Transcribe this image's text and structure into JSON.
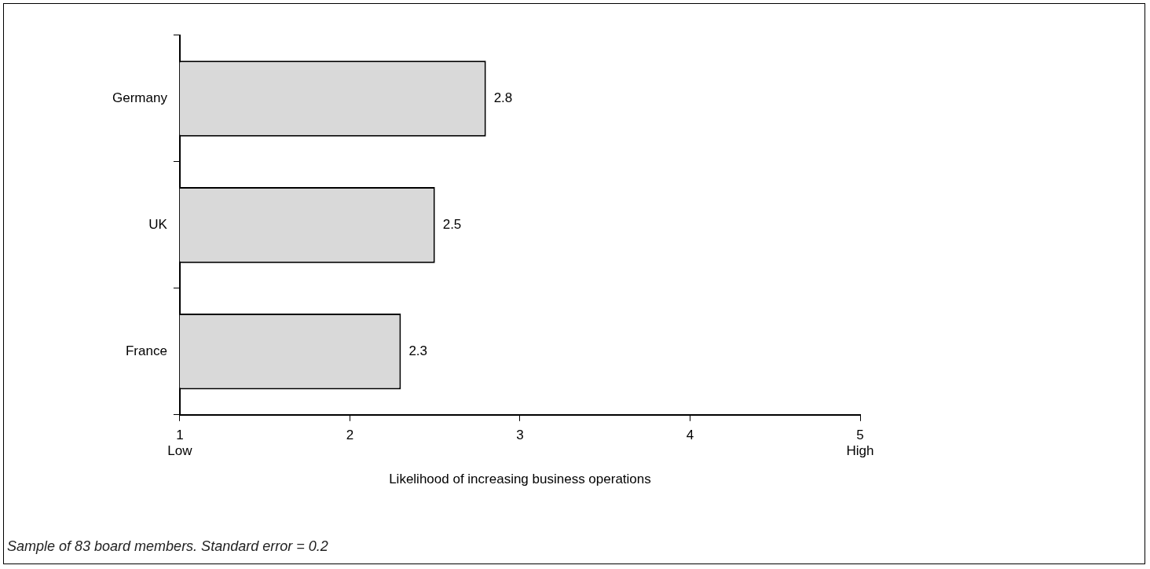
{
  "chart_data": {
    "type": "bar",
    "orientation": "horizontal",
    "categories": [
      "Germany",
      "UK",
      "France"
    ],
    "values": [
      2.8,
      2.5,
      2.3
    ],
    "color": "#d9d9d9",
    "xlim": [
      1,
      5
    ],
    "xticks": [
      {
        "value": 1,
        "label": "1\nLow"
      },
      2,
      3,
      4,
      {
        "value": 5,
        "label": "5\nHigh"
      }
    ],
    "xlabel": "Likelihood of increasing business operations",
    "data_labels": true,
    "grid": false,
    "legend": false,
    "annotations": [
      "Sample of 83 board members. Standard error = 0.2"
    ]
  }
}
